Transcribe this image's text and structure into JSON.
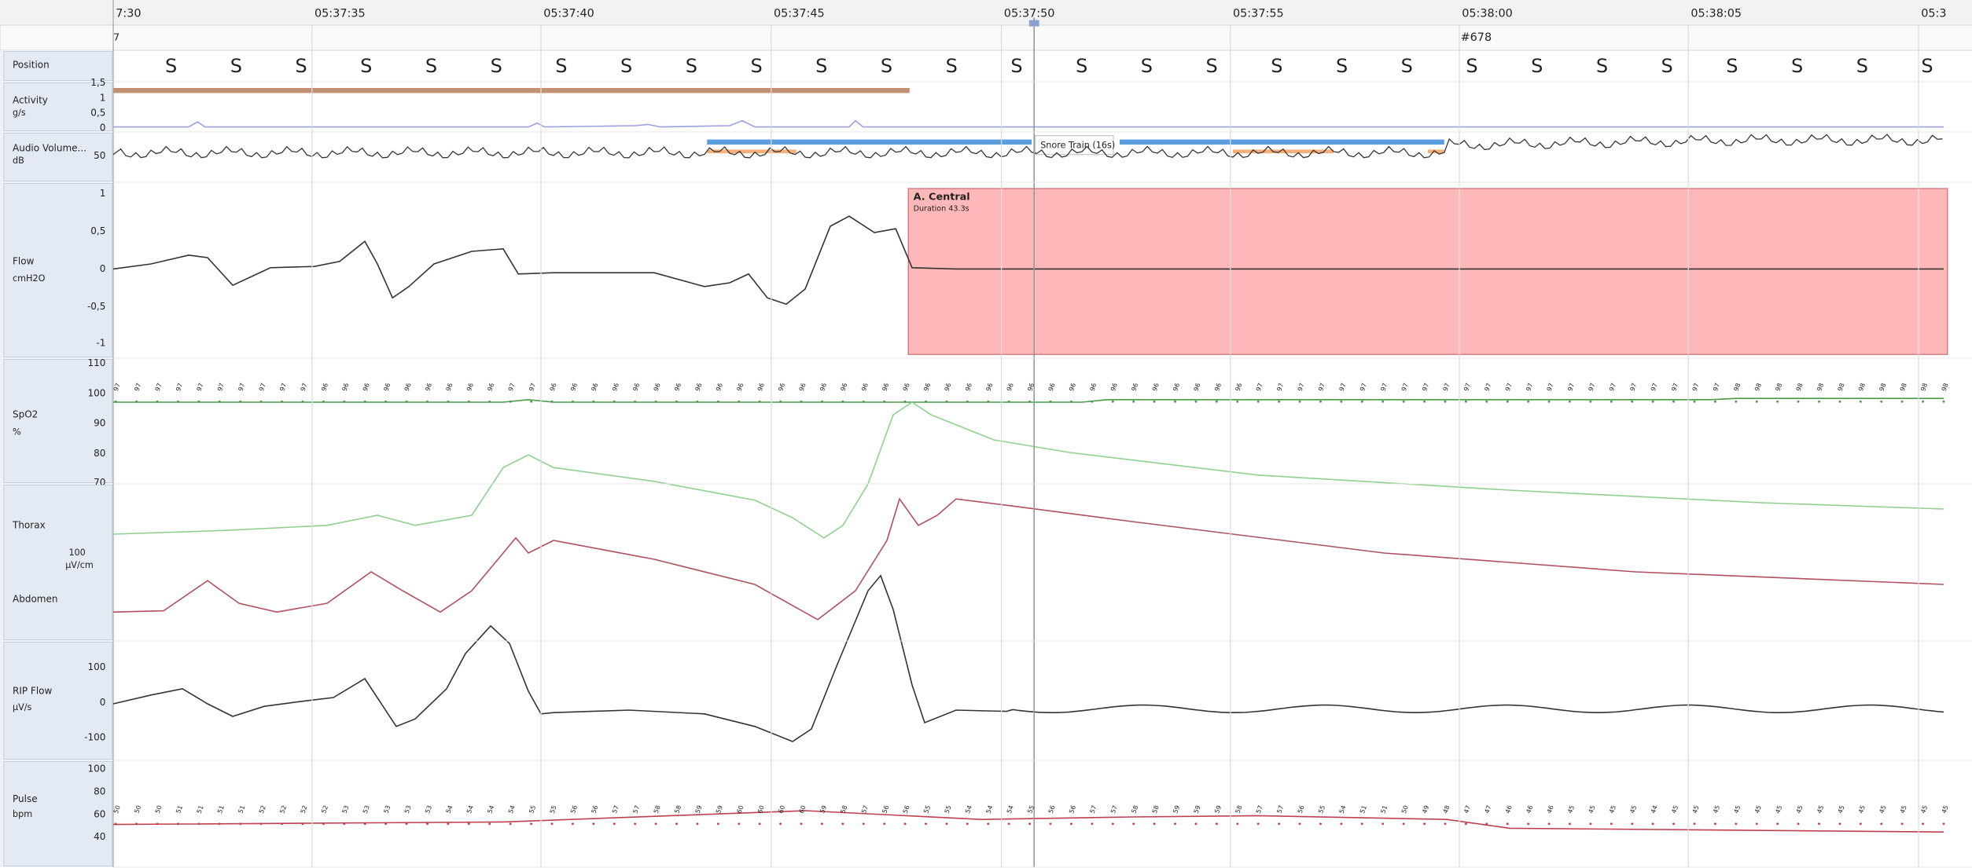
{
  "header": {
    "time_labels": [
      "7:30",
      "05:37:35",
      "05:37:40",
      "05:37:45",
      "05:37:50",
      "05:37:55",
      "05:38:00",
      "05:38:05",
      "05:3"
    ],
    "row_label": "7",
    "epoch": "#678"
  },
  "channels": [
    {
      "label": "Position"
    },
    {
      "label": "Activity",
      "unit": "g/s",
      "ticks": [
        "1,5",
        "1",
        "0,5",
        "0"
      ]
    },
    {
      "label": "Audio Volume...",
      "unit": "dB",
      "ticks": [
        "50"
      ]
    },
    {
      "label": "Flow",
      "unit": "cmH2O",
      "ticks": [
        "1",
        "0,5",
        "0",
        "-0,5",
        "-1"
      ]
    },
    {
      "label": "SpO2",
      "unit": "%",
      "ticks": [
        "110",
        "100",
        "90",
        "80",
        "70"
      ]
    },
    {
      "label": "Thorax",
      "scale": "100",
      "unit": "µV/cm"
    },
    {
      "label": "Abdomen"
    },
    {
      "label": "RIP Flow",
      "unit": "µV/s",
      "ticks": [
        "100",
        "0",
        "-100"
      ]
    },
    {
      "label": "Pulse",
      "unit": "bpm",
      "ticks": [
        "100",
        "80",
        "60",
        "40"
      ]
    }
  ],
  "position_markers": [
    "S",
    "S",
    "S",
    "S",
    "S",
    "S",
    "S",
    "S",
    "S",
    "S",
    "S",
    "S",
    "S",
    "S",
    "S",
    "S",
    "S",
    "S",
    "S",
    "S",
    "S",
    "S",
    "S",
    "S",
    "S",
    "S",
    "S",
    "S"
  ],
  "events": {
    "apnea_title": "A. Central",
    "apnea_duration": "Duration 43.3s",
    "snore": "Snore Train (16s)"
  },
  "spo2_readings": [
    "97",
    "97",
    "97",
    "97",
    "97",
    "97",
    "97",
    "97",
    "97",
    "97",
    "96",
    "96",
    "96",
    "96",
    "96",
    "96",
    "96",
    "96",
    "96",
    "97",
    "97",
    "96",
    "96",
    "96",
    "96",
    "96",
    "96",
    "96",
    "96",
    "96",
    "96",
    "96",
    "96",
    "96",
    "96",
    "96",
    "96",
    "96",
    "96",
    "96",
    "96",
    "96",
    "96",
    "96",
    "96",
    "96",
    "96",
    "96",
    "96",
    "96",
    "96",
    "96",
    "96",
    "96",
    "96",
    "97",
    "97",
    "97",
    "97",
    "97",
    "97",
    "97",
    "97",
    "97",
    "97",
    "97",
    "97",
    "97",
    "97",
    "97",
    "97",
    "97",
    "97",
    "97",
    "97",
    "97",
    "97",
    "97",
    "98",
    "98",
    "98",
    "98",
    "98",
    "98",
    "98",
    "98",
    "98",
    "98",
    "98"
  ],
  "pulse_readings": [
    "50",
    "50",
    "50",
    "51",
    "51",
    "51",
    "51",
    "52",
    "52",
    "52",
    "52",
    "53",
    "53",
    "53",
    "53",
    "53",
    "54",
    "54",
    "54",
    "54",
    "55",
    "55",
    "56",
    "56",
    "57",
    "57",
    "58",
    "58",
    "59",
    "59",
    "60",
    "60",
    "60",
    "60",
    "59",
    "58",
    "57",
    "56",
    "56",
    "55",
    "55",
    "54",
    "54",
    "54",
    "55",
    "56",
    "56",
    "57",
    "57",
    "58",
    "58",
    "59",
    "59",
    "59",
    "58",
    "57",
    "57",
    "56",
    "55",
    "54",
    "51",
    "51",
    "50",
    "49",
    "48",
    "47",
    "47",
    "46",
    "46",
    "46",
    "45",
    "45",
    "45",
    "45",
    "44",
    "45",
    "45",
    "45",
    "45",
    "45",
    "45",
    "45",
    "45",
    "45",
    "45",
    "45",
    "45",
    "45",
    "45"
  ]
}
